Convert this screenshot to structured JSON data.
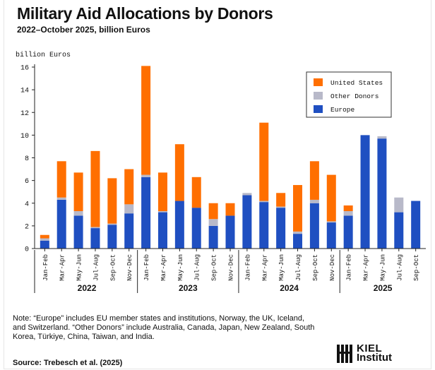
{
  "header": {
    "title": "Military Aid Allocations by Donors",
    "subtitle": "2022–October 2025, billion Euros"
  },
  "note": "Note: “Europe” includes EU member states and institutions, Norway, the UK, Iceland, and Switzerland. “Other Donors” include Australia, Canada, Japan, New Zealand, South Korea, Türkiye, China, Taiwan, and India.",
  "source": "Source: Trebesch et al. (2025)",
  "logo": {
    "line1": "KIEL",
    "line2": "Institut"
  },
  "chart_data": {
    "type": "bar",
    "stacked": true,
    "title": "Military Aid Allocations by Donors",
    "ylabel": "billion Euros",
    "xlabel": "",
    "ylim": [
      0,
      16
    ],
    "yticks": [
      0,
      2,
      4,
      6,
      8,
      10,
      12,
      14,
      16
    ],
    "grid": false,
    "legend_position": "top-right",
    "categories": [
      "Jan-Feb",
      "Mar-Apr",
      "May-Jun",
      "Jul-Aug",
      "Sep-Oct",
      "Nov-Dec",
      "Jan-Feb",
      "Mar-Apr",
      "May-Jun",
      "Jul-Aug",
      "Sep-Oct",
      "Nov-Dec",
      "Jan-Feb",
      "Mar-Apr",
      "May-Jun",
      "Jul-Aug",
      "Sep-Oct",
      "Nov-Dec",
      "Jan-Feb",
      "Mar-Apr",
      "May-Jun",
      "Jul-Aug",
      "Sep-Oct"
    ],
    "year_groups": [
      {
        "label": "2022",
        "count": 6
      },
      {
        "label": "2023",
        "count": 6
      },
      {
        "label": "2024",
        "count": 6
      },
      {
        "label": "2025",
        "count": 5
      }
    ],
    "series": [
      {
        "name": "Europe",
        "color": "#1f4fc1",
        "values": [
          0.7,
          4.3,
          2.9,
          1.8,
          2.1,
          3.1,
          6.3,
          3.2,
          4.2,
          3.6,
          2.0,
          2.9,
          4.7,
          4.1,
          3.6,
          1.3,
          4.0,
          2.3,
          2.9,
          10.0,
          9.7,
          3.2,
          4.2
        ]
      },
      {
        "name": "Other Donors",
        "color": "#b8b9c9",
        "values": [
          0.2,
          0.2,
          0.4,
          0.1,
          0.1,
          0.8,
          0.2,
          0.1,
          0.0,
          0.0,
          0.6,
          0.0,
          0.2,
          0.1,
          0.1,
          0.2,
          0.3,
          0.1,
          0.4,
          0.0,
          0.2,
          1.3,
          0.0
        ]
      },
      {
        "name": "United States",
        "color": "#ff6f00",
        "values": [
          0.3,
          3.2,
          3.4,
          6.7,
          4.0,
          3.1,
          9.6,
          3.4,
          5.0,
          2.7,
          1.4,
          1.1,
          0.0,
          6.9,
          1.2,
          4.1,
          3.4,
          4.1,
          0.5,
          0.0,
          0.0,
          0.0,
          0.0
        ]
      }
    ],
    "legend_order": [
      "United States",
      "Other Donors",
      "Europe"
    ]
  }
}
